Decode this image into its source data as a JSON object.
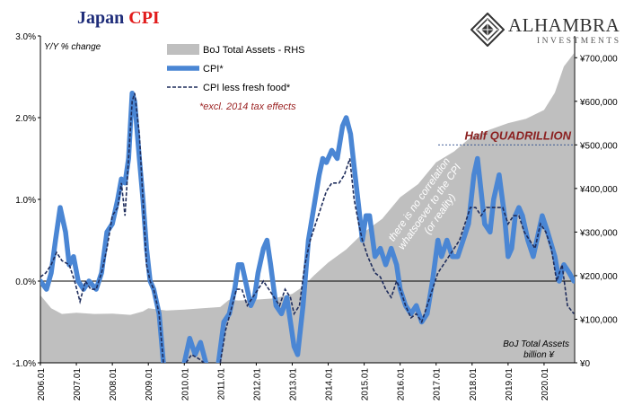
{
  "header": {
    "title_main": "Japan",
    "title_accent": "CPI"
  },
  "brand": {
    "name": "ALHAMBRA",
    "sub": "INVESTMENTS"
  },
  "chart_data": {
    "type": "line",
    "ylabel_left": "Y/Y % change",
    "ylabel_right": "BoJ Total Assets billion ¥",
    "left_axis": {
      "min": -1.0,
      "max": 3.0,
      "ticks": [
        -1.0,
        0.0,
        1.0,
        2.0,
        3.0
      ],
      "tick_labels": [
        "-1.0%",
        "0.0%",
        "1.0%",
        "2.0%",
        "3.0%"
      ]
    },
    "right_axis": {
      "min": 0,
      "max": 750000,
      "ticks": [
        0,
        100000,
        200000,
        300000,
        400000,
        500000,
        600000,
        700000
      ],
      "tick_labels": [
        "¥0",
        "¥100,000",
        "¥200,000",
        "¥300,000",
        "¥400,000",
        "¥500,000",
        "¥600,000",
        "¥700,000"
      ]
    },
    "x_axis": {
      "min": 2006.0,
      "max": 2020.85,
      "ticks": [
        2006,
        2007,
        2008,
        2009,
        2010,
        2011,
        2012,
        2013,
        2014,
        2015,
        2016,
        2017,
        2018,
        2019,
        2020
      ],
      "tick_labels": [
        "2006.01",
        "2007.01",
        "2008.01",
        "2009.01",
        "2010.01",
        "2011.01",
        "2012.01",
        "2013.01",
        "2014.01",
        "2015.01",
        "2016.01",
        "2017.01",
        "2018.01",
        "2019.01",
        "2020.01"
      ]
    },
    "legend": [
      {
        "name": "BoJ Total Assets - RHS",
        "color": "#bfbfbf",
        "style": "area"
      },
      {
        "name": "CPI*",
        "color": "#4a86d4",
        "style": "thick-line"
      },
      {
        "name": "CPI less fresh food*",
        "color": "#1f2d5c",
        "style": "dashed-line"
      }
    ],
    "legend_note": "*excl. 2014 tax effects",
    "annotations": {
      "half_label": "Half QUADRILLION",
      "half_value": 500000,
      "diagonal_text_line1": "there is no correlation",
      "diagonal_text_line2": "whatsoever to the CPI",
      "diagonal_text_line3": "(or reality)"
    },
    "series": [
      {
        "name": "BoJ Total Assets - RHS",
        "axis": "right",
        "points": [
          [
            2006.0,
            155000
          ],
          [
            2006.3,
            125000
          ],
          [
            2006.6,
            112000
          ],
          [
            2007.0,
            115000
          ],
          [
            2007.5,
            112000
          ],
          [
            2008.0,
            113000
          ],
          [
            2008.5,
            110000
          ],
          [
            2008.85,
            118000
          ],
          [
            2009.0,
            125000
          ],
          [
            2009.5,
            120000
          ],
          [
            2010.0,
            122000
          ],
          [
            2010.5,
            125000
          ],
          [
            2011.0,
            128000
          ],
          [
            2011.25,
            145000
          ],
          [
            2011.5,
            143000
          ],
          [
            2012.0,
            145000
          ],
          [
            2012.5,
            148000
          ],
          [
            2013.0,
            158000
          ],
          [
            2013.3,
            175000
          ],
          [
            2013.6,
            200000
          ],
          [
            2014.0,
            230000
          ],
          [
            2014.5,
            260000
          ],
          [
            2015.0,
            300000
          ],
          [
            2015.5,
            330000
          ],
          [
            2016.0,
            380000
          ],
          [
            2016.5,
            410000
          ],
          [
            2017.0,
            460000
          ],
          [
            2017.5,
            485000
          ],
          [
            2018.0,
            520000
          ],
          [
            2018.5,
            535000
          ],
          [
            2019.0,
            550000
          ],
          [
            2019.5,
            560000
          ],
          [
            2020.0,
            580000
          ],
          [
            2020.3,
            620000
          ],
          [
            2020.55,
            680000
          ],
          [
            2020.83,
            710000
          ]
        ]
      },
      {
        "name": "CPI*",
        "axis": "left",
        "points": [
          [
            2006.0,
            0.0
          ],
          [
            2006.17,
            -0.1
          ],
          [
            2006.3,
            0.1
          ],
          [
            2006.42,
            0.5
          ],
          [
            2006.55,
            0.9
          ],
          [
            2006.7,
            0.6
          ],
          [
            2006.8,
            0.2
          ],
          [
            2006.92,
            0.3
          ],
          [
            2007.05,
            0.0
          ],
          [
            2007.2,
            -0.1
          ],
          [
            2007.35,
            0.0
          ],
          [
            2007.55,
            -0.1
          ],
          [
            2007.7,
            0.1
          ],
          [
            2007.85,
            0.6
          ],
          [
            2008.0,
            0.7
          ],
          [
            2008.15,
            1.0
          ],
          [
            2008.25,
            1.25
          ],
          [
            2008.35,
            1.2
          ],
          [
            2008.45,
            1.5
          ],
          [
            2008.55,
            2.3
          ],
          [
            2008.62,
            2.2
          ],
          [
            2008.75,
            1.5
          ],
          [
            2008.85,
            1.0
          ],
          [
            2008.95,
            0.4
          ],
          [
            2009.05,
            0.0
          ],
          [
            2009.15,
            -0.1
          ],
          [
            2009.3,
            -0.4
          ],
          [
            2009.42,
            -1.0
          ]
        ]
      },
      {
        "name": "CPI*",
        "axis": "left",
        "points": [
          [
            2010.0,
            -1.0
          ],
          [
            2010.15,
            -0.7
          ],
          [
            2010.3,
            -0.9
          ],
          [
            2010.45,
            -0.75
          ],
          [
            2010.6,
            -1.0
          ]
        ]
      },
      {
        "name": "CPI*",
        "axis": "left",
        "points": [
          [
            2010.95,
            -1.0
          ],
          [
            2011.1,
            -0.5
          ],
          [
            2011.25,
            -0.4
          ],
          [
            2011.4,
            -0.1
          ],
          [
            2011.5,
            0.2
          ],
          [
            2011.6,
            0.2
          ],
          [
            2011.7,
            0.0
          ],
          [
            2011.85,
            -0.3
          ],
          [
            2011.95,
            -0.2
          ],
          [
            2012.05,
            0.1
          ],
          [
            2012.2,
            0.4
          ],
          [
            2012.3,
            0.5
          ],
          [
            2012.4,
            0.2
          ],
          [
            2012.55,
            -0.3
          ],
          [
            2012.7,
            -0.4
          ],
          [
            2012.85,
            -0.2
          ],
          [
            2012.95,
            -0.5
          ],
          [
            2013.05,
            -0.8
          ],
          [
            2013.15,
            -0.9
          ],
          [
            2013.3,
            -0.3
          ],
          [
            2013.45,
            0.5
          ],
          [
            2013.6,
            0.9
          ],
          [
            2013.75,
            1.3
          ],
          [
            2013.85,
            1.5
          ],
          [
            2013.95,
            1.45
          ],
          [
            2014.1,
            1.6
          ],
          [
            2014.25,
            1.5
          ],
          [
            2014.4,
            1.9
          ],
          [
            2014.5,
            2.0
          ],
          [
            2014.62,
            1.8
          ],
          [
            2014.72,
            1.4
          ],
          [
            2014.85,
            0.9
          ],
          [
            2014.95,
            0.5
          ],
          [
            2015.05,
            0.8
          ],
          [
            2015.15,
            0.8
          ],
          [
            2015.3,
            0.3
          ],
          [
            2015.45,
            0.4
          ],
          [
            2015.6,
            0.2
          ],
          [
            2015.75,
            0.4
          ],
          [
            2015.9,
            0.2
          ],
          [
            2016.0,
            -0.1
          ],
          [
            2016.15,
            -0.3
          ],
          [
            2016.3,
            -0.4
          ],
          [
            2016.45,
            -0.3
          ],
          [
            2016.6,
            -0.5
          ],
          [
            2016.75,
            -0.4
          ],
          [
            2016.9,
            0.0
          ],
          [
            2017.05,
            0.5
          ],
          [
            2017.15,
            0.3
          ],
          [
            2017.3,
            0.5
          ],
          [
            2017.45,
            0.3
          ],
          [
            2017.6,
            0.3
          ],
          [
            2017.75,
            0.5
          ],
          [
            2017.9,
            0.7
          ],
          [
            2018.05,
            1.3
          ],
          [
            2018.15,
            1.5
          ],
          [
            2018.25,
            1.1
          ],
          [
            2018.35,
            0.7
          ],
          [
            2018.5,
            0.6
          ],
          [
            2018.6,
            1.0
          ],
          [
            2018.75,
            1.3
          ],
          [
            2018.9,
            0.8
          ],
          [
            2019.0,
            0.3
          ],
          [
            2019.1,
            0.4
          ],
          [
            2019.2,
            0.8
          ],
          [
            2019.3,
            0.9
          ],
          [
            2019.4,
            0.8
          ],
          [
            2019.55,
            0.5
          ],
          [
            2019.7,
            0.3
          ],
          [
            2019.85,
            0.6
          ],
          [
            2019.95,
            0.8
          ],
          [
            2020.1,
            0.6
          ],
          [
            2020.3,
            0.3
          ],
          [
            2020.42,
            0.0
          ],
          [
            2020.55,
            0.2
          ],
          [
            2020.7,
            0.1
          ],
          [
            2020.83,
            0.0
          ]
        ]
      },
      {
        "name": "CPI less fresh food*",
        "axis": "left",
        "points": [
          [
            2006.0,
            0.05
          ],
          [
            2006.15,
            0.1
          ],
          [
            2006.3,
            0.2
          ],
          [
            2006.45,
            0.35
          ],
          [
            2006.6,
            0.25
          ],
          [
            2006.8,
            0.2
          ],
          [
            2006.95,
            0.0
          ],
          [
            2007.1,
            -0.25
          ],
          [
            2007.25,
            0.0
          ],
          [
            2007.4,
            -0.1
          ],
          [
            2007.55,
            -0.1
          ],
          [
            2007.7,
            0.1
          ],
          [
            2007.85,
            0.4
          ],
          [
            2008.0,
            0.8
          ],
          [
            2008.15,
            0.9
          ],
          [
            2008.25,
            1.2
          ],
          [
            2008.35,
            0.8
          ],
          [
            2008.45,
            1.5
          ],
          [
            2008.55,
            2.2
          ],
          [
            2008.62,
            2.3
          ],
          [
            2008.75,
            1.8
          ],
          [
            2008.85,
            1.0
          ],
          [
            2008.95,
            0.2
          ],
          [
            2009.05,
            0.0
          ],
          [
            2009.15,
            -0.1
          ],
          [
            2009.3,
            -0.4
          ],
          [
            2009.42,
            -1.0
          ]
        ]
      },
      {
        "name": "CPI less fresh food*",
        "axis": "left",
        "points": [
          [
            2010.05,
            -1.0
          ],
          [
            2010.2,
            -0.9
          ],
          [
            2010.4,
            -0.95
          ],
          [
            2010.55,
            -1.0
          ]
        ]
      },
      {
        "name": "CPI less fresh food*",
        "axis": "left",
        "points": [
          [
            2011.0,
            -1.0
          ],
          [
            2011.15,
            -0.6
          ],
          [
            2011.3,
            -0.35
          ],
          [
            2011.45,
            -0.1
          ],
          [
            2011.6,
            -0.1
          ],
          [
            2011.75,
            -0.3
          ],
          [
            2011.9,
            -0.2
          ],
          [
            2012.05,
            -0.1
          ],
          [
            2012.2,
            0.0
          ],
          [
            2012.35,
            -0.1
          ],
          [
            2012.5,
            -0.2
          ],
          [
            2012.65,
            -0.3
          ],
          [
            2012.8,
            -0.1
          ],
          [
            2012.95,
            -0.2
          ],
          [
            2013.05,
            -0.4
          ],
          [
            2013.2,
            -0.3
          ],
          [
            2013.35,
            0.2
          ],
          [
            2013.5,
            0.5
          ],
          [
            2013.65,
            0.7
          ],
          [
            2013.8,
            0.9
          ],
          [
            2013.95,
            1.1
          ],
          [
            2014.1,
            1.2
          ],
          [
            2014.3,
            1.2
          ],
          [
            2014.45,
            1.3
          ],
          [
            2014.6,
            1.5
          ],
          [
            2014.72,
            1.0
          ],
          [
            2014.85,
            0.7
          ],
          [
            2014.95,
            0.5
          ],
          [
            2015.1,
            0.3
          ],
          [
            2015.3,
            0.1
          ],
          [
            2015.45,
            0.05
          ],
          [
            2015.6,
            -0.1
          ],
          [
            2015.75,
            -0.2
          ],
          [
            2015.9,
            0.0
          ],
          [
            2016.0,
            -0.1
          ],
          [
            2016.15,
            -0.3
          ],
          [
            2016.3,
            -0.45
          ],
          [
            2016.45,
            -0.4
          ],
          [
            2016.6,
            -0.5
          ],
          [
            2016.75,
            -0.3
          ],
          [
            2016.9,
            -0.1
          ],
          [
            2017.05,
            0.1
          ],
          [
            2017.2,
            0.2
          ],
          [
            2017.35,
            0.3
          ],
          [
            2017.5,
            0.4
          ],
          [
            2017.65,
            0.5
          ],
          [
            2017.8,
            0.7
          ],
          [
            2017.95,
            0.9
          ],
          [
            2018.1,
            0.9
          ],
          [
            2018.25,
            0.8
          ],
          [
            2018.4,
            0.9
          ],
          [
            2018.55,
            0.9
          ],
          [
            2018.7,
            0.9
          ],
          [
            2018.85,
            0.9
          ],
          [
            2019.0,
            0.7
          ],
          [
            2019.15,
            0.8
          ],
          [
            2019.3,
            0.8
          ],
          [
            2019.45,
            0.6
          ],
          [
            2019.6,
            0.5
          ],
          [
            2019.75,
            0.4
          ],
          [
            2019.9,
            0.7
          ],
          [
            2020.05,
            0.6
          ],
          [
            2020.2,
            0.4
          ],
          [
            2020.35,
            0.0
          ],
          [
            2020.5,
            0.2
          ],
          [
            2020.65,
            -0.3
          ],
          [
            2020.83,
            -0.4
          ]
        ]
      }
    ]
  }
}
